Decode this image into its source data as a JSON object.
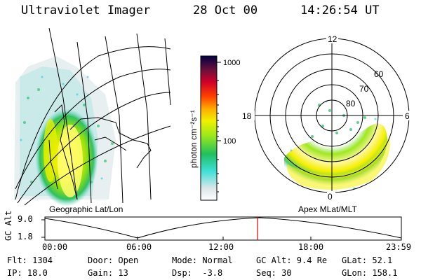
{
  "header": {
    "instrument": "Ultraviolet Imager",
    "date": "28 Oct 00",
    "time": "14:26:54 UT"
  },
  "panels": {
    "left_label": "Geographic Lat/Lon",
    "right_label": "Apex MLat/MLT"
  },
  "colorbar": {
    "unit_label": "photon cm⁻²s⁻¹",
    "ticks": [
      "1000",
      "100"
    ],
    "scale": "log"
  },
  "polar_plot": {
    "mlt_labels": [
      "12",
      "18",
      "6",
      "0"
    ],
    "lat_labels": [
      "60",
      "70",
      "80"
    ]
  },
  "altitude_plot": {
    "y_label": "GC Alt",
    "y_ticks": [
      "9.0",
      "1.8"
    ],
    "x_ticks": [
      "00:00",
      "06:00",
      "12:00",
      "18:00",
      "23:59"
    ],
    "current_time_marker_color": "#e00000"
  },
  "footer": {
    "col1": [
      "Flt: 1304",
      "IP: 18.0"
    ],
    "col2": [
      "Door: Open",
      "Gain: 13"
    ],
    "col3": [
      "Mode: Normal",
      "Dsp:  -3.8"
    ],
    "col4": [
      "GC Alt: 9.4 Re",
      "Seq: 30"
    ],
    "col5": [
      "GLat: 52.1",
      "GLon: 158.1"
    ]
  }
}
